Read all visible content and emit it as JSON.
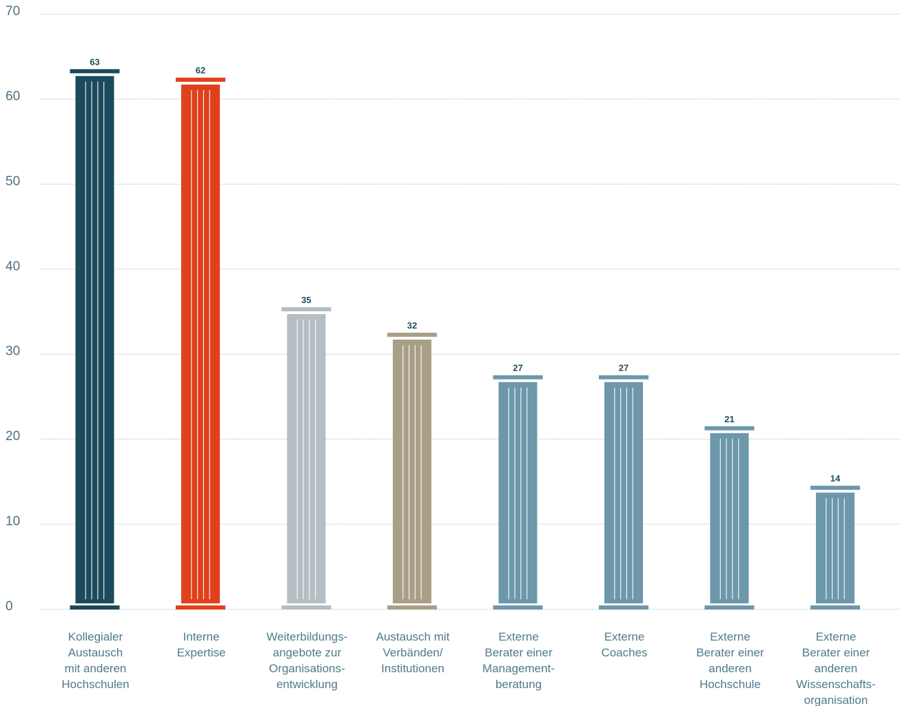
{
  "chart_data": {
    "type": "bar",
    "categories": [
      [
        "Kollegialer",
        "Austausch",
        "mit anderen",
        "Hochschulen"
      ],
      [
        "Interne",
        "Expertise"
      ],
      [
        "Weiterbildungs-",
        "angebote zur",
        "Organisations-",
        "entwicklung"
      ],
      [
        "Austausch mit",
        "Verbänden/",
        "Institutionen"
      ],
      [
        "Externe",
        "Berater einer",
        "Management-",
        "beratung"
      ],
      [
        "Externe",
        "Coaches"
      ],
      [
        "Externe",
        "Berater einer",
        "anderen",
        "Hochschule"
      ],
      [
        "Externe",
        "Berater einer",
        "anderen",
        "Wissenschafts-",
        "organisation"
      ]
    ],
    "values": [
      63,
      62,
      35,
      32,
      27,
      27,
      21,
      14
    ],
    "colors": [
      "#1b4a5c",
      "#e0401c",
      "#b5bec2",
      "#a99f87",
      "#6d97aa",
      "#6d97aa",
      "#6d97aa",
      "#6d97aa"
    ],
    "ylim": [
      0,
      70
    ],
    "yticks": [
      0,
      10,
      20,
      30,
      40,
      50,
      60,
      70
    ],
    "grid": true,
    "style": "column-shaped bars"
  }
}
